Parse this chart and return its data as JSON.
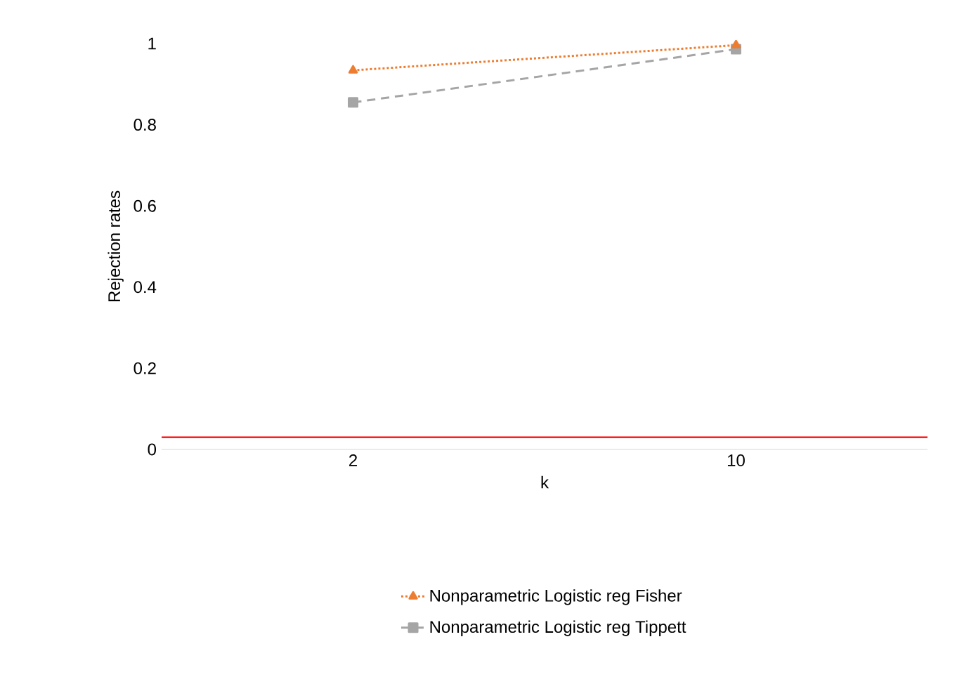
{
  "chart_data": {
    "type": "line",
    "xlabel": "k",
    "ylabel": "Rejection rates",
    "categories": [
      "2",
      "10"
    ],
    "ylim": [
      0,
      1
    ],
    "yticks": [
      0,
      0.2,
      0.4,
      0.6,
      0.8,
      1
    ],
    "series": [
      {
        "name": "Nonparametric Logistic reg Fisher",
        "color": "#ed7d31",
        "values": [
          0.934,
          0.996
        ],
        "marker": "triangle",
        "line_style": "dotted"
      },
      {
        "name": "Nonparametric Logistic reg Tippett",
        "color": "#a5a5a5",
        "values": [
          0.855,
          0.986
        ],
        "marker": "square",
        "line_style": "dashed"
      }
    ],
    "ref_lines": [
      {
        "axis": "y",
        "value": 0.03,
        "color": "#ff0000"
      }
    ],
    "grid": false,
    "legend": "bottom"
  }
}
